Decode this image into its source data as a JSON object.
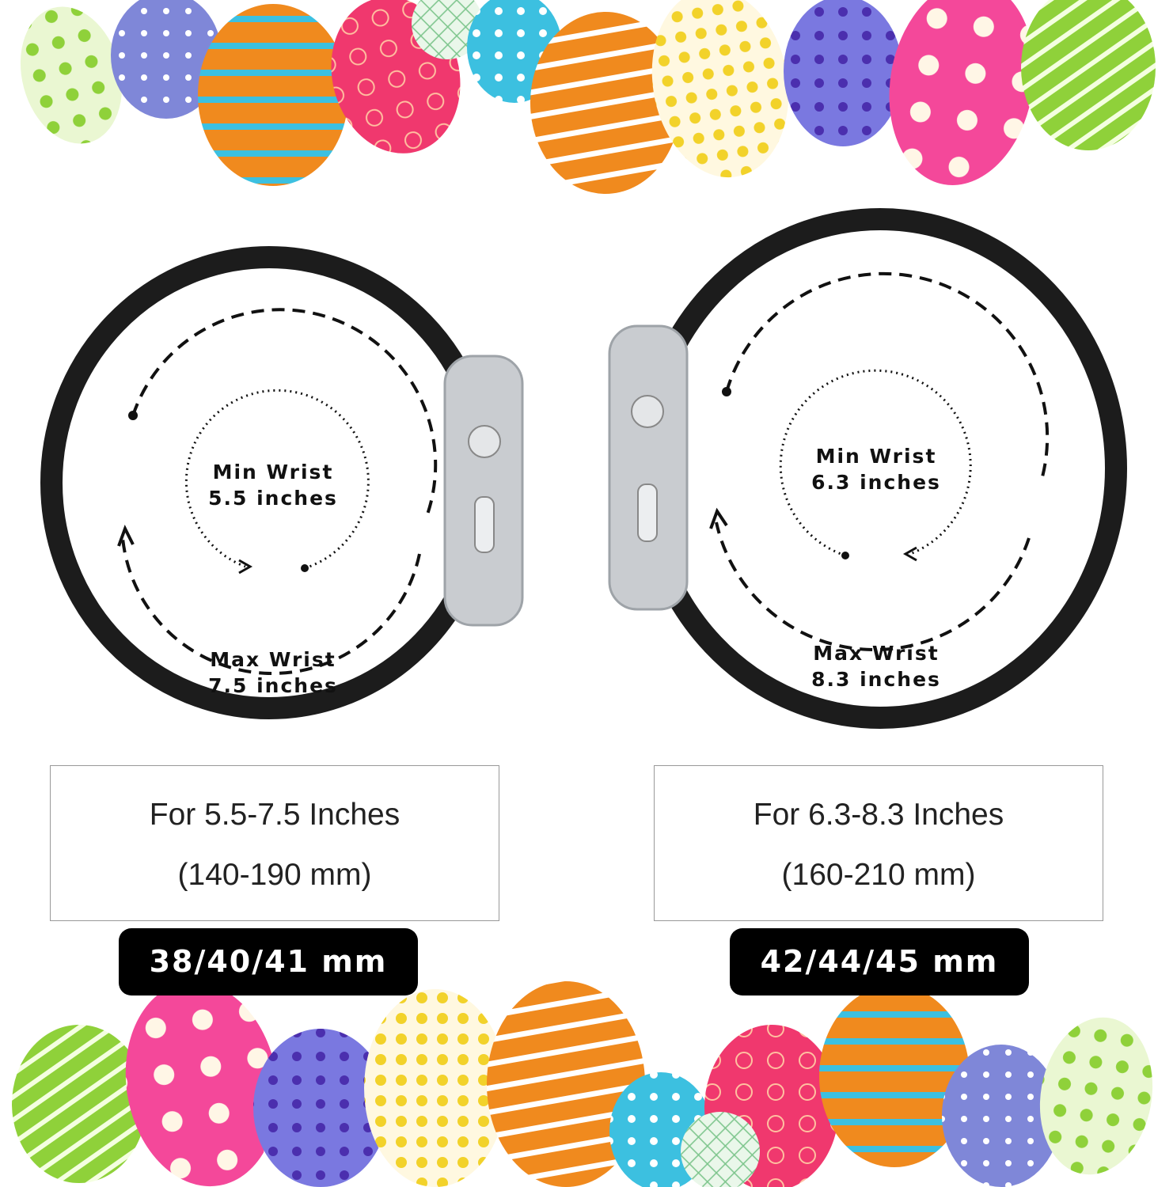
{
  "small_band": {
    "min_label": "Min Wrist",
    "min_value": "5.5 inches",
    "max_label": "Max Wrist",
    "max_value": "7.5 inches",
    "range_inches": "For 5.5-7.5 Inches",
    "range_mm": "(140-190 mm)",
    "case_sizes": "38/40/41 mm"
  },
  "large_band": {
    "min_label": "Min Wrist",
    "min_value": "6.3 inches",
    "max_label": "Max Wrist",
    "max_value": "8.3 inches",
    "range_inches": "For 6.3-8.3 Inches",
    "range_mm": "(160-210 mm)",
    "case_sizes": "42/44/45 mm"
  },
  "colors": {
    "band": "#1c1c1c",
    "case": "#c9ccd0",
    "egg_palette": [
      "#8fd13a",
      "#7f87d8",
      "#f08a1e",
      "#f0386e",
      "#3cc0e0",
      "#f2d22a",
      "#5a4fc8",
      "#f4489a"
    ]
  }
}
